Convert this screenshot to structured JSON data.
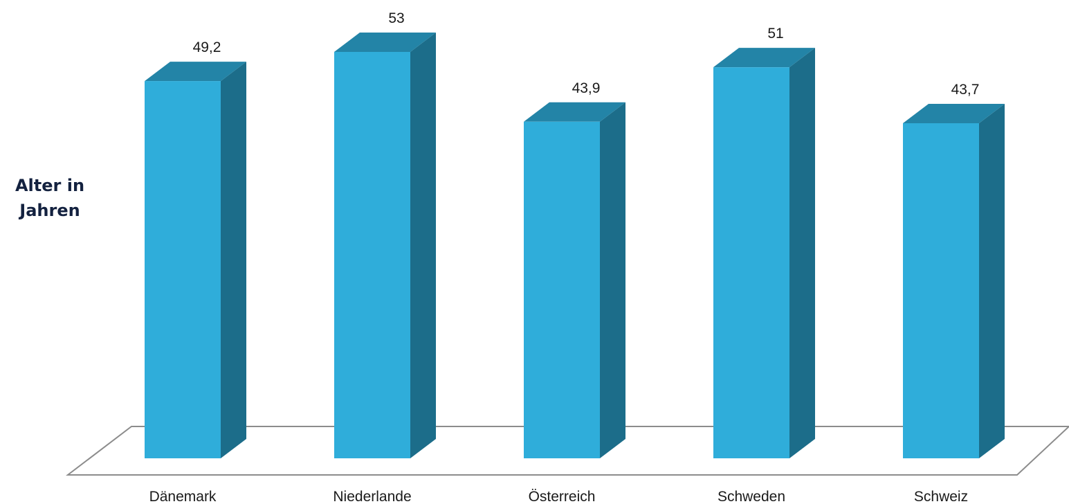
{
  "chart_data": {
    "type": "bar",
    "title": "",
    "xlabel": "",
    "ylabel_lines": [
      "Alter in",
      "Jahren"
    ],
    "categories": [
      "Dänemark",
      "Niederlande",
      "Österreich",
      "Schweden",
      "Schweiz"
    ],
    "values": [
      49.2,
      53,
      43.9,
      51,
      43.7
    ],
    "value_labels": [
      "49,2",
      "53",
      "43,9",
      "51",
      "43,7"
    ],
    "ylim": [
      0,
      53
    ],
    "grid": false,
    "legend": "none",
    "style": "3d-column",
    "colors": {
      "front": "#2fadda",
      "side": "#1c6d8a",
      "top": "#2384a7",
      "floor": "#8c8c8c",
      "ylabel": "#13213f"
    }
  }
}
